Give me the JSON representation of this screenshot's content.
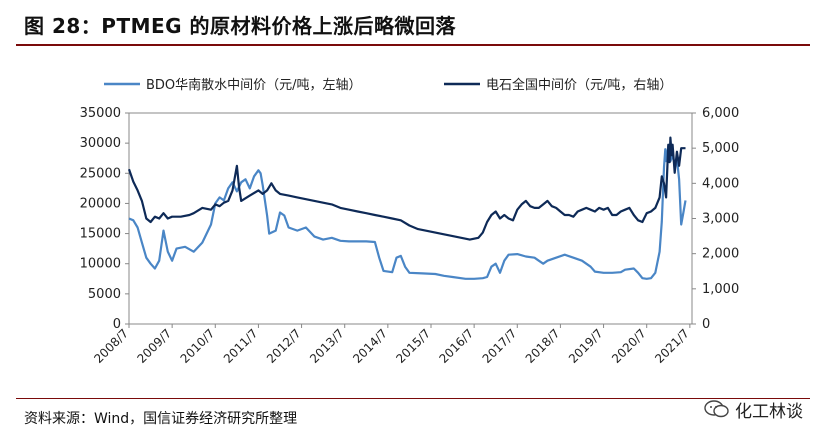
{
  "header": {
    "title": "图 28：PTMEG 的原材料价格上涨后略微回落"
  },
  "footer": {
    "source": "资料来源：Wind，国信证券经济研究所整理",
    "watermark": "化工林谈",
    "watermark_icon": "wechat-icon"
  },
  "colors": {
    "title_rule": "#7a0a0a",
    "bdo_series": "#4a86c6",
    "carbide_series": "#0e2a57"
  },
  "chart_data": {
    "type": "line",
    "x_tick_labels": [
      "2008/7",
      "2009/7",
      "2010/7",
      "2011/7",
      "2012/7",
      "2013/7",
      "2014/7",
      "2015/7",
      "2016/7",
      "2017/7",
      "2018/7",
      "2019/7",
      "2020/7",
      "2021/7"
    ],
    "xlim": [
      2008.5,
      2021.55
    ],
    "y_left": {
      "ylim": [
        0,
        35000
      ],
      "ticks": [
        "0",
        "5000",
        "10000",
        "15000",
        "20000",
        "25000",
        "30000",
        "35000"
      ]
    },
    "y_right": {
      "ylim": [
        0,
        6000
      ],
      "ticks": [
        "0",
        "1,000",
        "2,000",
        "3,000",
        "4,000",
        "5,000",
        "6,000"
      ]
    },
    "legend_position": "top",
    "series": [
      {
        "name": "BDO华南散水中间价（元/吨，左轴）",
        "axis": "left",
        "color": "#4a86c6",
        "points": [
          [
            2008.5,
            17500
          ],
          [
            2008.6,
            17200
          ],
          [
            2008.7,
            16000
          ],
          [
            2008.8,
            13500
          ],
          [
            2008.9,
            11000
          ],
          [
            2009.0,
            10000
          ],
          [
            2009.1,
            9200
          ],
          [
            2009.2,
            10500
          ],
          [
            2009.3,
            15500
          ],
          [
            2009.4,
            12000
          ],
          [
            2009.5,
            10500
          ],
          [
            2009.6,
            12500
          ],
          [
            2009.8,
            12800
          ],
          [
            2010.0,
            12000
          ],
          [
            2010.2,
            13500
          ],
          [
            2010.4,
            16500
          ],
          [
            2010.5,
            20000
          ],
          [
            2010.6,
            21000
          ],
          [
            2010.7,
            20500
          ],
          [
            2010.8,
            22500
          ],
          [
            2010.9,
            23500
          ],
          [
            2011.0,
            22000
          ],
          [
            2011.1,
            23500
          ],
          [
            2011.2,
            24000
          ],
          [
            2011.3,
            22500
          ],
          [
            2011.4,
            24500
          ],
          [
            2011.5,
            25500
          ],
          [
            2011.55,
            25000
          ],
          [
            2011.6,
            23000
          ],
          [
            2011.7,
            18000
          ],
          [
            2011.75,
            15000
          ],
          [
            2011.9,
            15500
          ],
          [
            2012.0,
            18500
          ],
          [
            2012.1,
            18000
          ],
          [
            2012.2,
            16000
          ],
          [
            2012.4,
            15500
          ],
          [
            2012.6,
            16000
          ],
          [
            2012.8,
            14500
          ],
          [
            2013.0,
            14000
          ],
          [
            2013.2,
            14300
          ],
          [
            2013.4,
            13800
          ],
          [
            2013.6,
            13700
          ],
          [
            2013.8,
            13700
          ],
          [
            2014.0,
            13700
          ],
          [
            2014.2,
            13600
          ],
          [
            2014.3,
            11000
          ],
          [
            2014.4,
            8800
          ],
          [
            2014.5,
            8700
          ],
          [
            2014.6,
            8600
          ],
          [
            2014.7,
            11000
          ],
          [
            2014.8,
            11300
          ],
          [
            2014.9,
            9500
          ],
          [
            2015.0,
            8500
          ],
          [
            2015.3,
            8400
          ],
          [
            2015.6,
            8300
          ],
          [
            2015.8,
            8000
          ],
          [
            2016.0,
            7800
          ],
          [
            2016.3,
            7500
          ],
          [
            2016.5,
            7500
          ],
          [
            2016.7,
            7600
          ],
          [
            2016.8,
            7800
          ],
          [
            2016.9,
            9500
          ],
          [
            2017.0,
            10000
          ],
          [
            2017.1,
            8500
          ],
          [
            2017.2,
            10500
          ],
          [
            2017.3,
            11500
          ],
          [
            2017.5,
            11600
          ],
          [
            2017.7,
            11200
          ],
          [
            2017.9,
            11000
          ],
          [
            2018.0,
            10500
          ],
          [
            2018.1,
            10000
          ],
          [
            2018.2,
            10500
          ],
          [
            2018.4,
            11000
          ],
          [
            2018.6,
            11500
          ],
          [
            2018.8,
            11000
          ],
          [
            2019.0,
            10500
          ],
          [
            2019.1,
            10000
          ],
          [
            2019.2,
            9500
          ],
          [
            2019.3,
            8700
          ],
          [
            2019.5,
            8500
          ],
          [
            2019.7,
            8500
          ],
          [
            2019.9,
            8600
          ],
          [
            2020.0,
            9000
          ],
          [
            2020.2,
            9200
          ],
          [
            2020.3,
            8500
          ],
          [
            2020.4,
            7600
          ],
          [
            2020.5,
            7500
          ],
          [
            2020.6,
            7600
          ],
          [
            2020.7,
            8500
          ],
          [
            2020.8,
            12000
          ],
          [
            2020.85,
            17000
          ],
          [
            2020.9,
            26000
          ],
          [
            2020.93,
            29000
          ],
          [
            2020.95,
            27000
          ],
          [
            2021.0,
            29500
          ],
          [
            2021.05,
            27000
          ],
          [
            2021.1,
            28000
          ],
          [
            2021.15,
            26500
          ],
          [
            2021.2,
            27500
          ],
          [
            2021.25,
            24000
          ],
          [
            2021.3,
            16500
          ],
          [
            2021.35,
            18500
          ],
          [
            2021.4,
            20500
          ]
        ]
      },
      {
        "name": "电石全国中间价（元/吨，右轴）",
        "axis": "right",
        "color": "#0e2a57",
        "points": [
          [
            2008.5,
            4400
          ],
          [
            2008.6,
            4050
          ],
          [
            2008.7,
            3800
          ],
          [
            2008.8,
            3500
          ],
          [
            2008.9,
            3000
          ],
          [
            2009.0,
            2900
          ],
          [
            2009.1,
            3050
          ],
          [
            2009.2,
            3000
          ],
          [
            2009.3,
            3150
          ],
          [
            2009.4,
            3000
          ],
          [
            2009.5,
            3050
          ],
          [
            2009.7,
            3050
          ],
          [
            2009.9,
            3100
          ],
          [
            2010.0,
            3150
          ],
          [
            2010.2,
            3300
          ],
          [
            2010.4,
            3250
          ],
          [
            2010.5,
            3400
          ],
          [
            2010.6,
            3350
          ],
          [
            2010.7,
            3450
          ],
          [
            2010.8,
            3500
          ],
          [
            2010.9,
            3800
          ],
          [
            2011.0,
            4500
          ],
          [
            2011.05,
            3900
          ],
          [
            2011.1,
            3500
          ],
          [
            2011.3,
            3650
          ],
          [
            2011.5,
            3800
          ],
          [
            2011.6,
            3700
          ],
          [
            2011.7,
            3800
          ],
          [
            2011.8,
            4000
          ],
          [
            2011.9,
            3800
          ],
          [
            2012.0,
            3700
          ],
          [
            2012.2,
            3650
          ],
          [
            2012.4,
            3600
          ],
          [
            2012.6,
            3550
          ],
          [
            2012.8,
            3500
          ],
          [
            2013.0,
            3450
          ],
          [
            2013.2,
            3400
          ],
          [
            2013.4,
            3300
          ],
          [
            2013.6,
            3250
          ],
          [
            2013.8,
            3200
          ],
          [
            2014.0,
            3150
          ],
          [
            2014.2,
            3100
          ],
          [
            2014.4,
            3050
          ],
          [
            2014.6,
            3000
          ],
          [
            2014.8,
            2950
          ],
          [
            2015.0,
            2800
          ],
          [
            2015.2,
            2700
          ],
          [
            2015.4,
            2650
          ],
          [
            2015.6,
            2600
          ],
          [
            2015.8,
            2550
          ],
          [
            2016.0,
            2500
          ],
          [
            2016.2,
            2450
          ],
          [
            2016.4,
            2400
          ],
          [
            2016.6,
            2450
          ],
          [
            2016.7,
            2600
          ],
          [
            2016.8,
            2900
          ],
          [
            2016.9,
            3100
          ],
          [
            2017.0,
            3200
          ],
          [
            2017.1,
            3000
          ],
          [
            2017.2,
            3100
          ],
          [
            2017.3,
            3000
          ],
          [
            2017.4,
            2950
          ],
          [
            2017.5,
            3250
          ],
          [
            2017.6,
            3400
          ],
          [
            2017.7,
            3500
          ],
          [
            2017.8,
            3350
          ],
          [
            2017.9,
            3300
          ],
          [
            2018.0,
            3300
          ],
          [
            2018.1,
            3400
          ],
          [
            2018.2,
            3500
          ],
          [
            2018.3,
            3350
          ],
          [
            2018.4,
            3300
          ],
          [
            2018.5,
            3200
          ],
          [
            2018.6,
            3100
          ],
          [
            2018.7,
            3100
          ],
          [
            2018.8,
            3050
          ],
          [
            2018.9,
            3200
          ],
          [
            2019.0,
            3250
          ],
          [
            2019.1,
            3300
          ],
          [
            2019.2,
            3250
          ],
          [
            2019.3,
            3200
          ],
          [
            2019.4,
            3300
          ],
          [
            2019.5,
            3250
          ],
          [
            2019.6,
            3300
          ],
          [
            2019.7,
            3100
          ],
          [
            2019.8,
            3100
          ],
          [
            2019.9,
            3200
          ],
          [
            2020.0,
            3250
          ],
          [
            2020.1,
            3300
          ],
          [
            2020.2,
            3100
          ],
          [
            2020.3,
            2950
          ],
          [
            2020.4,
            2900
          ],
          [
            2020.5,
            3150
          ],
          [
            2020.6,
            3200
          ],
          [
            2020.7,
            3300
          ],
          [
            2020.8,
            3600
          ],
          [
            2020.85,
            4200
          ],
          [
            2020.9,
            4000
          ],
          [
            2020.95,
            3600
          ],
          [
            2021.0,
            5100
          ],
          [
            2021.03,
            4600
          ],
          [
            2021.05,
            5300
          ],
          [
            2021.08,
            4800
          ],
          [
            2021.1,
            5100
          ],
          [
            2021.15,
            4300
          ],
          [
            2021.2,
            4900
          ],
          [
            2021.25,
            4500
          ],
          [
            2021.3,
            5000
          ],
          [
            2021.4,
            5000
          ]
        ]
      }
    ]
  }
}
